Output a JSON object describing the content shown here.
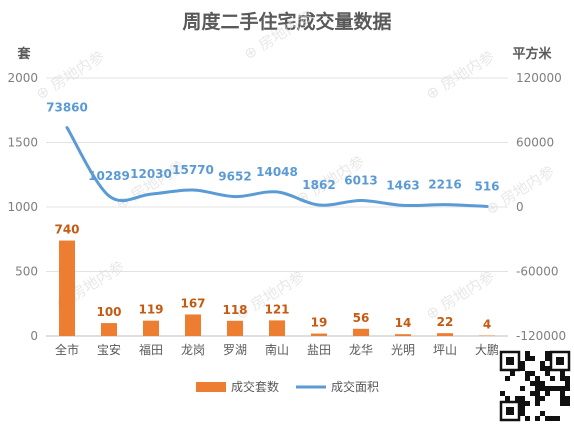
{
  "chart_data": {
    "type": "bar+line",
    "title": "周度二手住宅成交量数据",
    "categories": [
      "全市",
      "宝安",
      "福田",
      "龙岗",
      "罗湖",
      "南山",
      "盐田",
      "龙华",
      "光明",
      "坪山",
      "大鹏"
    ],
    "left_axis": {
      "unit": "套",
      "min": 0,
      "max": 2000,
      "ticks": [
        "0",
        "500",
        "1000",
        "1500",
        "2000"
      ]
    },
    "right_axis": {
      "unit": "平方米",
      "min": -120000,
      "max": 120000,
      "ticks": [
        "-120000",
        "-60000",
        "0",
        "60000",
        "120000"
      ]
    },
    "series": [
      {
        "name": "成交套数",
        "type": "bar",
        "axis": "left",
        "color": "#ed7d31",
        "values": [
          740,
          100,
          119,
          167,
          118,
          121,
          19,
          56,
          14,
          22,
          4
        ]
      },
      {
        "name": "成交面积",
        "type": "line",
        "axis": "right",
        "color": "#5b9bd5",
        "values": [
          73860,
          10289,
          12030,
          15770,
          9652,
          14048,
          1862,
          6013,
          1463,
          2216,
          516
        ]
      }
    ],
    "legend_position": "bottom",
    "grid": "horizontal",
    "watermark": "房地内参"
  }
}
